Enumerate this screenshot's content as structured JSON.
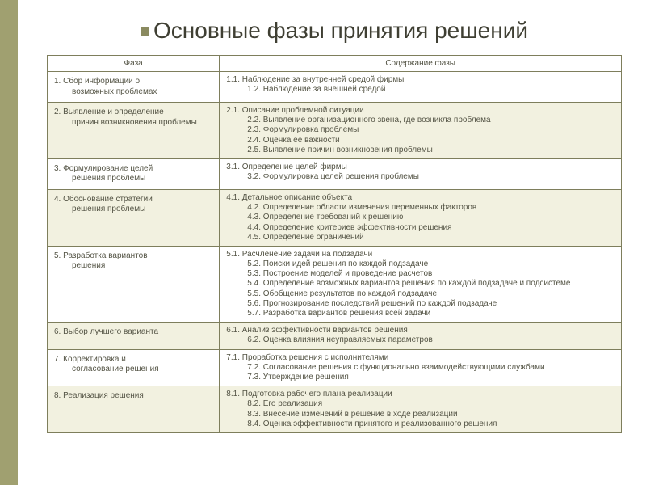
{
  "title": "Основные фазы принятия решений",
  "colors": {
    "sidebar": "#a0a070",
    "border": "#7e7e5c",
    "row_alt_bg": "#f2f1e0",
    "text": "#545445",
    "title_text": "#3f3f33",
    "background": "#ffffff"
  },
  "typography": {
    "title_fontsize_pt": 21,
    "header_fontsize_pt": 8,
    "body_fontsize_pt": 8,
    "font_family": "Arial"
  },
  "table": {
    "type": "table",
    "col_widths_pct": [
      30,
      70
    ],
    "columns": [
      "Фаза",
      "Содержание фазы"
    ],
    "rows": [
      {
        "phase_main": "1. Сбор информации о",
        "phase_sub": "возможных проблемах",
        "content_main": "1.1. Наблюдение за внутренней средой фирмы",
        "content_subs": [
          "1.2. Наблюдение за внешней средой"
        ]
      },
      {
        "phase_main": "2. Выявление и определение",
        "phase_sub": "причин возникновения проблемы",
        "content_main": "2.1. Описание проблемной ситуации",
        "content_subs": [
          "2.2. Выявление организационного звена, где возникла проблема",
          "2.3. Формулировка проблемы",
          "2.4. Оценка ее важности",
          "2.5. Выявление причин возникновения проблемы"
        ]
      },
      {
        "phase_main": "3. Формулирование целей",
        "phase_sub": "решения проблемы",
        "content_main": "3.1. Определение целей фирмы",
        "content_subs": [
          "3.2. Формулировка целей решения проблемы"
        ]
      },
      {
        "phase_main": "4. Обоснование стратегии",
        "phase_sub": "решения проблемы",
        "content_main": "4.1. Детальное описание объекта",
        "content_subs": [
          "4.2. Определение области изменения переменных факторов",
          "4.3. Определение требований к решению",
          "4.4. Определение критериев эффективности решения",
          "4.5. Определение ограничений"
        ]
      },
      {
        "phase_main": "5. Разработка вариантов",
        "phase_sub": "решения",
        "content_main": "5.1. Расчленение задачи на подзадачи",
        "content_subs": [
          "5.2. Поиски идей решения по каждой подзадаче",
          "5.3. Построение моделей и проведение расчетов",
          "5.4. Определение возможных вариантов решения по каждой подзадаче и подсистеме",
          "5.5. Обобщение результатов по каждой подзадаче",
          "5.6. Прогнозирование последствий решений по каждой подзадаче",
          "5.7. Разработка вариантов решения всей задачи"
        ]
      },
      {
        "phase_main": "6. Выбор лучшего варианта",
        "phase_sub": "",
        "content_main": "6.1. Анализ эффективности вариантов решения",
        "content_subs": [
          "6.2. Оценка влияния неуправляемых параметров"
        ]
      },
      {
        "phase_main": "7. Корректировка и",
        "phase_sub": "согласование решения",
        "content_main": "7.1. Проработка решения с исполнителями",
        "content_subs": [
          "7.2. Согласование решения с функционально взаимодействующими службами",
          "7.3. Утверждение решения"
        ]
      },
      {
        "phase_main": "8. Реализация решения",
        "phase_sub": "",
        "content_main": "8.1. Подготовка рабочего плана реализации",
        "content_subs": [
          "8.2. Его реализация",
          "8.3. Внесение изменений в решение в ходе реализации",
          "8.4. Оценка эффективности принятого и реализованного решения"
        ]
      }
    ]
  }
}
